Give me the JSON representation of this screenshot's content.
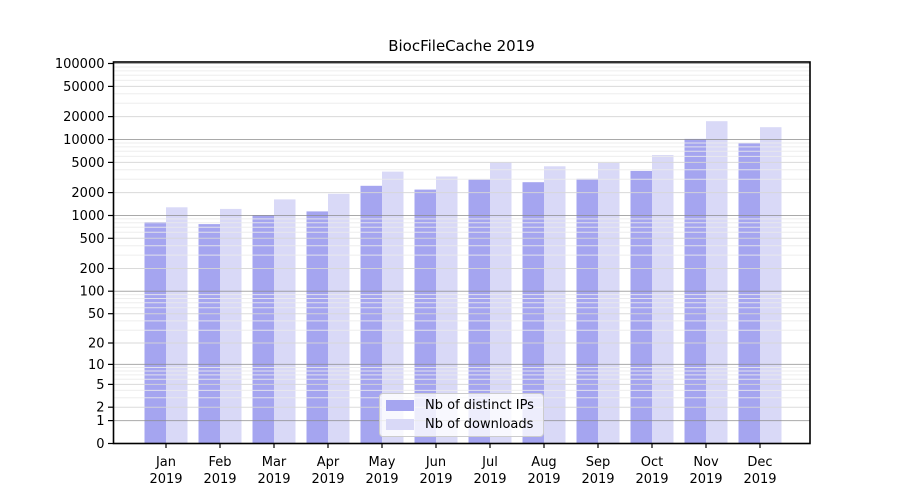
{
  "chart_data": {
    "type": "bar",
    "title": "BiocFileCache 2019",
    "categories": [
      "Jan",
      "Feb",
      "Mar",
      "Apr",
      "May",
      "Jun",
      "Jul",
      "Aug",
      "Sep",
      "Oct",
      "Nov",
      "Dec"
    ],
    "year": "2019",
    "series": [
      {
        "name": "Nb of distinct IPs",
        "color": "#a5a5f0",
        "values": [
          820,
          770,
          1010,
          1130,
          2460,
          2190,
          2970,
          2740,
          3040,
          3860,
          10190,
          9020
        ]
      },
      {
        "name": "Nb of downloads",
        "color": "#d9d9f7",
        "values": [
          1280,
          1220,
          1630,
          1930,
          3780,
          3260,
          5020,
          4440,
          4900,
          6250,
          17430,
          14530
        ]
      }
    ],
    "yscale": "log1p",
    "ylim": [
      0,
      100000
    ],
    "yticks": [
      100000,
      50000,
      20000,
      10000,
      5000,
      2000,
      1000,
      500,
      200,
      100,
      50,
      20,
      10,
      5,
      2,
      1,
      0
    ],
    "grid": true,
    "legend_position": "lower center"
  }
}
